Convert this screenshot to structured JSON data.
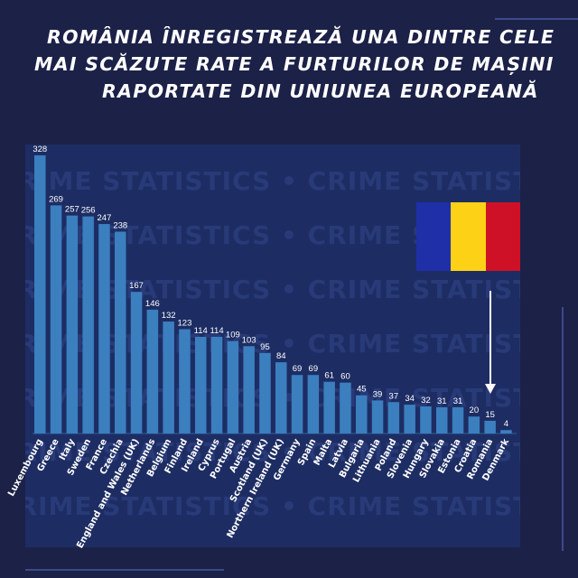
{
  "title": {
    "line1": "ROMÂNIA ÎNREGISTREAZĂ UNA DINTRE CELE",
    "line2": "MAI SCĂZUTE RATE A FURTURILOR DE MAȘINI",
    "line3": "RAPORTATE DIN UNIUNEA EUROPEANĂ"
  },
  "watermark": "CRIME STATISTICS • CRIME STATISTICS • CRIME STATISTICS •",
  "flag": {
    "colors": [
      "#1f2fa8",
      "#fcd116",
      "#ce1126"
    ]
  },
  "colors": {
    "bar": "#3b7fbf",
    "background": "#1c2148",
    "panel": "#1d2d63"
  },
  "chart_data": {
    "type": "bar",
    "categories": [
      "Luxembourg",
      "Greece",
      "Italy",
      "Sweden",
      "France",
      "Czechia",
      "England and Wales (UK)",
      "Netherlands",
      "Belgium",
      "Finland",
      "Ireland",
      "Cyprus",
      "Portugal",
      "Austria",
      "Scotland (UK)",
      "Northern Ireland (UK)",
      "Germany",
      "Spain",
      "Malta",
      "Latvia",
      "Bulgaria",
      "Lithuania",
      "Poland",
      "Slovenia",
      "Hungary",
      "Slovakia",
      "Estonia",
      "Croatia",
      "Romania",
      "Denmark"
    ],
    "values": [
      328,
      269,
      257,
      256,
      247,
      238,
      167,
      146,
      132,
      123,
      114,
      114,
      109,
      103,
      95,
      84,
      69,
      69,
      61,
      60,
      45,
      39,
      37,
      34,
      32,
      31,
      31,
      20,
      15,
      4
    ],
    "highlight": "Romania",
    "ylim": [
      0,
      328
    ]
  }
}
